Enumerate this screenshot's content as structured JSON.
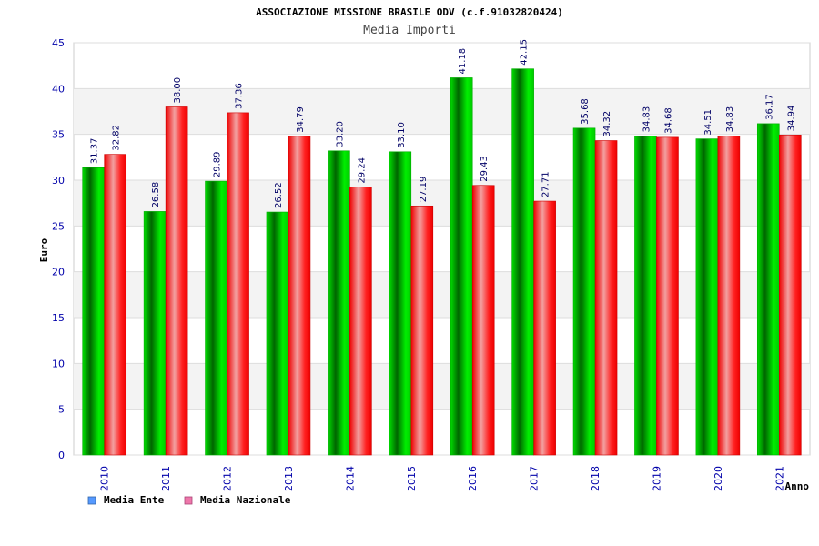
{
  "header": {
    "title": "ASSOCIAZIONE MISSIONE BRASILE ODV (c.f.91032820424)",
    "subtitle": "Media Importi"
  },
  "colors": {
    "ente": "#00cc00",
    "nazionale": "#ff0000",
    "axis_text": "#0000aa",
    "legend_ente": "#5599ff",
    "legend_nazionale": "#ee77aa"
  },
  "chart_data": {
    "type": "bar",
    "title": "ASSOCIAZIONE MISSIONE BRASILE ODV (c.f.91032820424)",
    "subtitle": "Media Importi",
    "xlabel": "Anno",
    "ylabel": "Euro",
    "ylim": [
      0,
      45
    ],
    "yticks": [
      0,
      5,
      10,
      15,
      20,
      25,
      30,
      35,
      40,
      45
    ],
    "grid": true,
    "legend_position": "bottom-left",
    "categories": [
      "2010",
      "2011",
      "2012",
      "2013",
      "2014",
      "2015",
      "2016",
      "2017",
      "2018",
      "2019",
      "2020",
      "2021"
    ],
    "series": [
      {
        "name": "Media Ente",
        "values": [
          31.37,
          26.58,
          29.89,
          26.52,
          33.2,
          33.1,
          41.18,
          42.15,
          35.68,
          34.83,
          34.51,
          36.17
        ],
        "labels": [
          "31.37",
          "26.58",
          "29.89",
          "26.52",
          "33.20",
          "33.10",
          "41.18",
          "42.15",
          "35.68",
          "34.83",
          "34.51",
          "36.17"
        ]
      },
      {
        "name": "Media Nazionale",
        "values": [
          32.82,
          38.0,
          37.36,
          34.79,
          29.24,
          27.19,
          29.43,
          27.71,
          34.32,
          34.68,
          34.83,
          34.94
        ],
        "labels": [
          "32.82",
          "38.00",
          "37.36",
          "34.79",
          "29.24",
          "27.19",
          "29.43",
          "27.71",
          "34.32",
          "34.68",
          "34.83",
          "34.94"
        ]
      }
    ]
  }
}
